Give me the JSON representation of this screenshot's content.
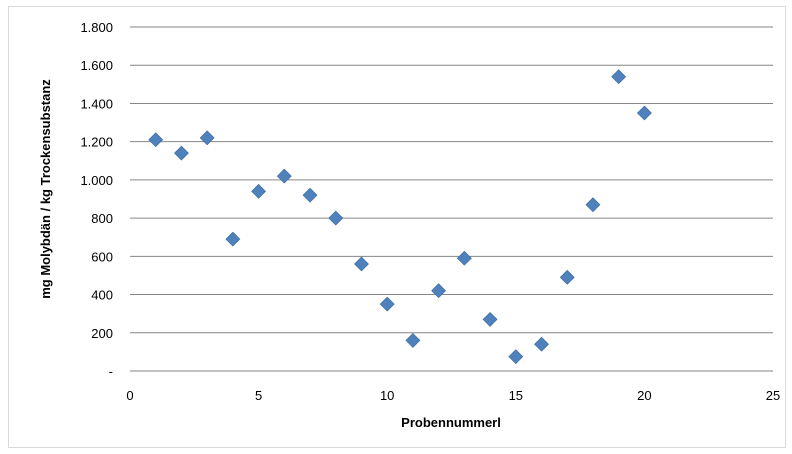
{
  "chart_data": {
    "type": "scatter",
    "title": "",
    "xlabel": "Probennummerl",
    "ylabel": "mg Molybdän / kg Trockensubstanz",
    "xlim": [
      0,
      25
    ],
    "ylim": [
      0,
      1800
    ],
    "x_ticks": [
      0,
      5,
      10,
      15,
      20,
      25
    ],
    "x_tick_labels": [
      "0",
      "5",
      "10",
      "15",
      "20",
      "25"
    ],
    "y_ticks": [
      0,
      200,
      400,
      600,
      800,
      1000,
      1200,
      1400,
      1600,
      1800
    ],
    "y_tick_labels": [
      "-",
      "200",
      "400",
      "600",
      "800",
      "1.000",
      "1.200",
      "1.400",
      "1.600",
      "1.800"
    ],
    "grid": "horizontal",
    "legend": "none",
    "marker": "diamond",
    "marker_color": "#4F81BD",
    "series": [
      {
        "x": [
          1,
          2,
          3,
          4,
          5,
          6,
          7,
          8,
          9,
          10,
          11,
          12,
          13,
          14,
          15,
          16,
          17,
          18,
          19,
          20
        ],
        "y": [
          1210,
          1140,
          1220,
          690,
          940,
          1020,
          920,
          800,
          560,
          350,
          160,
          420,
          590,
          270,
          75,
          140,
          490,
          870,
          1540,
          1350
        ]
      }
    ]
  }
}
